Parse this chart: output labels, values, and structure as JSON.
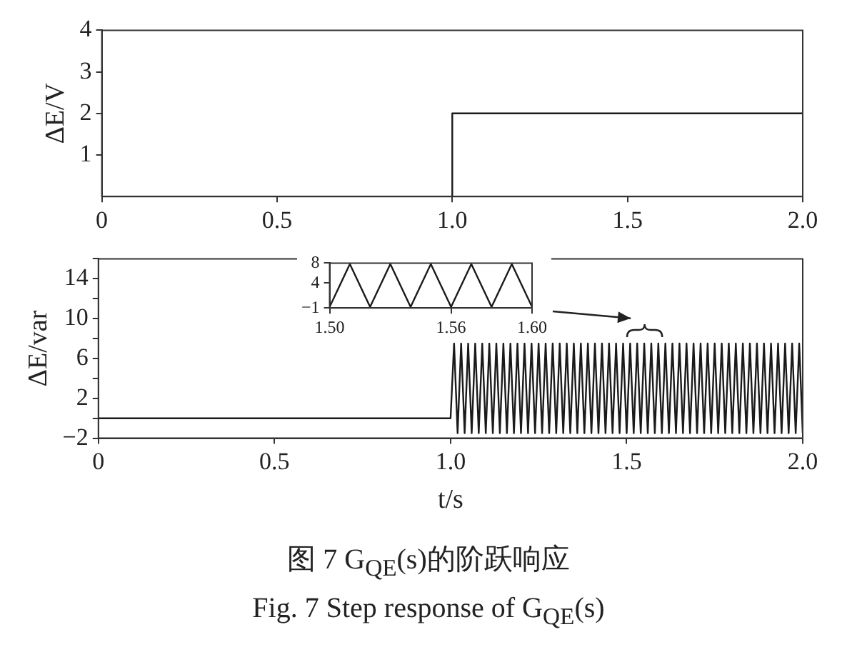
{
  "chart_data": [
    {
      "type": "step",
      "ylabel": "ΔE/V",
      "x": [
        0,
        1.0,
        2.0
      ],
      "series": [
        {
          "color": "#1a1a1a",
          "values": [
            0,
            2,
            2
          ]
        }
      ],
      "xlim": [
        0,
        2.0
      ],
      "ylim": [
        0,
        4
      ],
      "xticks": [
        0,
        0.5,
        {
          "value": 1.0,
          "label": "1.0"
        },
        1.5,
        {
          "value": 2.0,
          "label": "2.0"
        }
      ],
      "yticks": [
        1,
        2,
        3,
        4
      ]
    },
    {
      "type": "line",
      "ylabel": "ΔE/var",
      "xlabel": "t/s",
      "x": [
        0,
        1.0,
        1.01,
        1.02,
        1.03,
        1.04,
        1.05,
        1.06,
        1.07,
        1.08,
        1.09,
        1.1,
        1.11,
        1.12,
        1.13,
        1.14,
        1.15,
        1.16,
        1.17,
        1.18,
        1.19,
        1.2,
        1.21,
        1.22,
        1.23,
        1.24,
        1.25,
        1.26,
        1.27,
        1.28,
        1.29,
        1.3,
        1.31,
        1.32,
        1.33,
        1.34,
        1.35,
        1.36,
        1.37,
        1.38,
        1.39,
        1.4,
        1.41,
        1.42,
        1.43,
        1.44,
        1.45,
        1.46,
        1.47,
        1.48,
        1.49,
        1.5,
        1.51,
        1.52,
        1.53,
        1.54,
        1.55,
        1.56,
        1.57,
        1.58,
        1.59,
        1.6,
        1.61,
        1.62,
        1.63,
        1.64,
        1.65,
        1.66,
        1.67,
        1.68,
        1.69,
        1.7,
        1.71,
        1.72,
        1.73,
        1.74,
        1.75,
        1.76,
        1.77,
        1.78,
        1.79,
        1.8,
        1.81,
        1.82,
        1.83,
        1.84,
        1.85,
        1.86,
        1.87,
        1.88,
        1.89,
        1.9,
        1.91,
        1.92,
        1.93,
        1.94,
        1.95,
        1.96,
        1.97,
        1.98,
        1.99,
        2.0
      ],
      "series": [
        {
          "color": "#1a1a1a",
          "values": [
            0,
            0,
            7.5,
            -1.5,
            7.5,
            -1.5,
            7.5,
            -1.5,
            7.5,
            -1.5,
            7.5,
            -1.5,
            7.5,
            -1.5,
            7.5,
            -1.5,
            7.5,
            -1.5,
            7.5,
            -1.5,
            7.5,
            -1.5,
            7.5,
            -1.5,
            7.5,
            -1.5,
            7.5,
            -1.5,
            7.5,
            -1.5,
            7.5,
            -1.5,
            7.5,
            -1.5,
            7.5,
            -1.5,
            7.5,
            -1.5,
            7.5,
            -1.5,
            7.5,
            -1.5,
            7.5,
            -1.5,
            7.5,
            -1.5,
            7.5,
            -1.5,
            7.5,
            -1.5,
            7.5,
            -1.5,
            7.5,
            -1.5,
            7.5,
            -1.5,
            7.5,
            -1.5,
            7.5,
            -1.5,
            7.5,
            -1.5,
            7.5,
            -1.5,
            7.5,
            -1.5,
            7.5,
            -1.5,
            7.5,
            -1.5,
            7.5,
            -1.5,
            7.5,
            -1.5,
            7.5,
            -1.5,
            7.5,
            -1.5,
            7.5,
            -1.5,
            7.5,
            -1.5,
            7.5,
            -1.5,
            7.5,
            -1.5,
            7.5,
            -1.5,
            7.5,
            -1.5,
            7.5,
            -1.5,
            7.5,
            -1.5,
            7.5,
            -1.5,
            7.5,
            -1.5,
            7.5,
            -1.5,
            7.5,
            -1.5
          ]
        }
      ],
      "xlim": [
        0,
        2.0
      ],
      "ylim": [
        -2,
        16
      ],
      "xticks": [
        0,
        0.5,
        {
          "value": 1.0,
          "label": "1.0"
        },
        1.5,
        {
          "value": 2.0,
          "label": "2.0"
        }
      ],
      "yticks": [
        {
          "value": -2,
          "label": "−2"
        },
        {
          "value": 0,
          "label": null
        },
        2,
        {
          "value": 4,
          "label": null
        },
        6,
        {
          "value": 8,
          "label": null
        },
        10,
        {
          "value": 12,
          "label": null
        },
        14,
        {
          "value": 16,
          "label": null
        }
      ],
      "annotations": [
        "图 7 G$_{QE}$(s)的阶跃响应",
        "Fig. 7 Step response of G$_{QE}$(s)"
      ]
    },
    {
      "type": "line",
      "x": [
        1.5,
        1.505,
        1.51,
        1.515,
        1.52,
        1.525,
        1.53,
        1.535,
        1.54,
        1.545,
        1.55,
        1.555,
        1.56,
        1.565,
        1.57,
        1.575,
        1.58,
        1.585,
        1.59,
        1.595,
        1.6
      ],
      "series": [
        {
          "color": "#1a1a1a",
          "values": [
            -0.8,
            3.5,
            7.8,
            3.5,
            -0.8,
            3.5,
            7.8,
            3.5,
            -0.8,
            3.5,
            7.8,
            3.5,
            -0.8,
            3.5,
            7.8,
            3.5,
            -0.8,
            3.5,
            7.8,
            3.5,
            -0.8
          ]
        }
      ],
      "xlim": [
        1.5,
        1.6
      ],
      "ylim": [
        -1,
        8
      ],
      "xticks": [
        {
          "value": 1.5,
          "label": "1.50"
        },
        1.56,
        {
          "value": 1.6,
          "label": "1.60"
        }
      ],
      "yticks": [
        {
          "value": -1,
          "label": "−1"
        },
        4,
        8
      ]
    }
  ]
}
